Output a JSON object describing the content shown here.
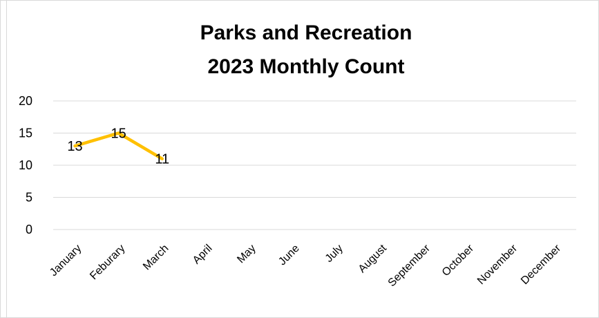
{
  "chart_data": {
    "type": "line",
    "title_lines": [
      "Parks and Recreation",
      "2023 Monthly Count"
    ],
    "categories": [
      "January",
      "Feburary",
      "March",
      "April",
      "May",
      "June",
      "July",
      "August",
      "September",
      "October",
      "November",
      "December"
    ],
    "series": [
      {
        "values": [
          13,
          15,
          11,
          null,
          null,
          null,
          null,
          null,
          null,
          null,
          null,
          null
        ]
      }
    ],
    "y_ticks": [
      0,
      5,
      10,
      15,
      20
    ],
    "ylim": [
      0,
      20
    ],
    "grid": true,
    "legend": "none",
    "data_labels": true,
    "colors": {
      "line": "#ffc000",
      "grid": "#d9d9d9",
      "text": "#000000"
    }
  }
}
